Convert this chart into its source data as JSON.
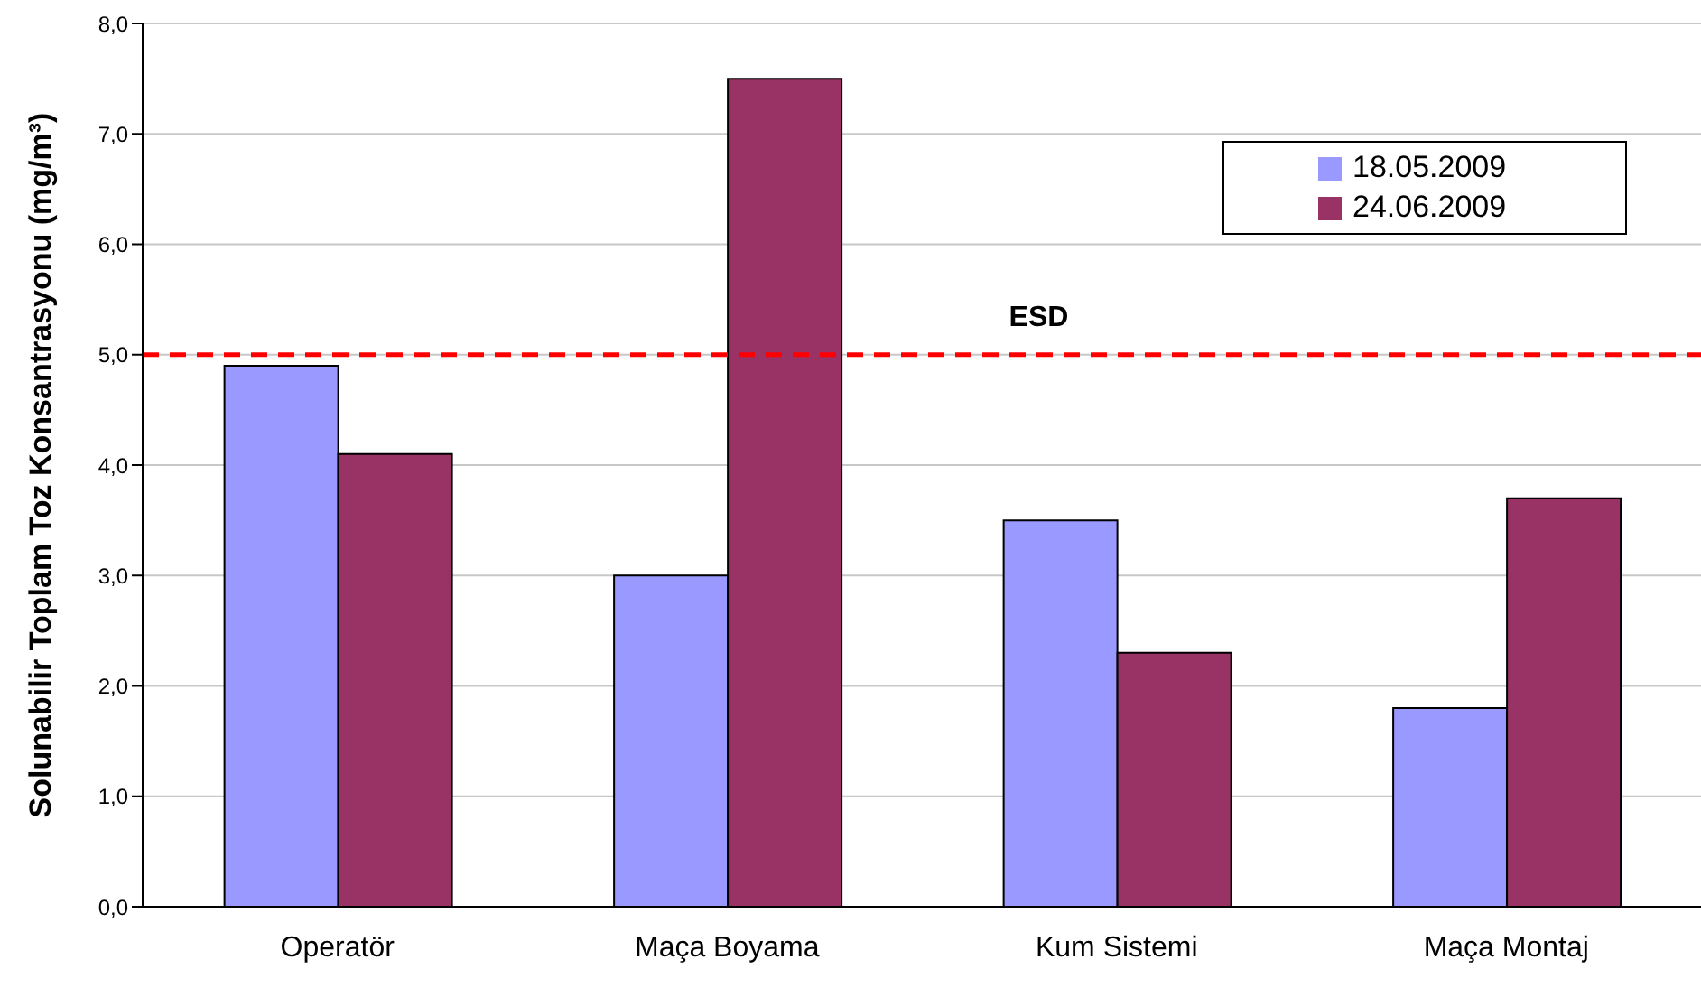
{
  "chart_data": {
    "type": "bar",
    "ylabel": "Solunabilir Toplam Toz Konsantrasyonu (mg/m³)",
    "categories": [
      "Operatör",
      "Maça Boyama",
      "Kum Sistemi",
      "Maça Montaj"
    ],
    "series": [
      {
        "name": "18.05.2009",
        "color": "#9999ff",
        "values": [
          4.9,
          3.0,
          3.5,
          1.8
        ]
      },
      {
        "name": "24.06.2009",
        "color": "#993366",
        "values": [
          4.1,
          7.5,
          2.3,
          3.7
        ]
      }
    ],
    "ylim": [
      0,
      8
    ],
    "yticks": [
      {
        "value": 0,
        "label": "0,0"
      },
      {
        "value": 1,
        "label": "1,0"
      },
      {
        "value": 2,
        "label": "2,0"
      },
      {
        "value": 3,
        "label": "3,0"
      },
      {
        "value": 4,
        "label": "4,0"
      },
      {
        "value": 5,
        "label": "5,0"
      },
      {
        "value": 6,
        "label": "6,0"
      },
      {
        "value": 7,
        "label": "7,0"
      },
      {
        "value": 8,
        "label": "8,0"
      }
    ],
    "grid": "y",
    "legend": "top right",
    "ref_lines": [
      {
        "axis": "y",
        "value": 5,
        "label": "ESD",
        "color": "#ff0000",
        "line_style": "dashed"
      }
    ]
  }
}
